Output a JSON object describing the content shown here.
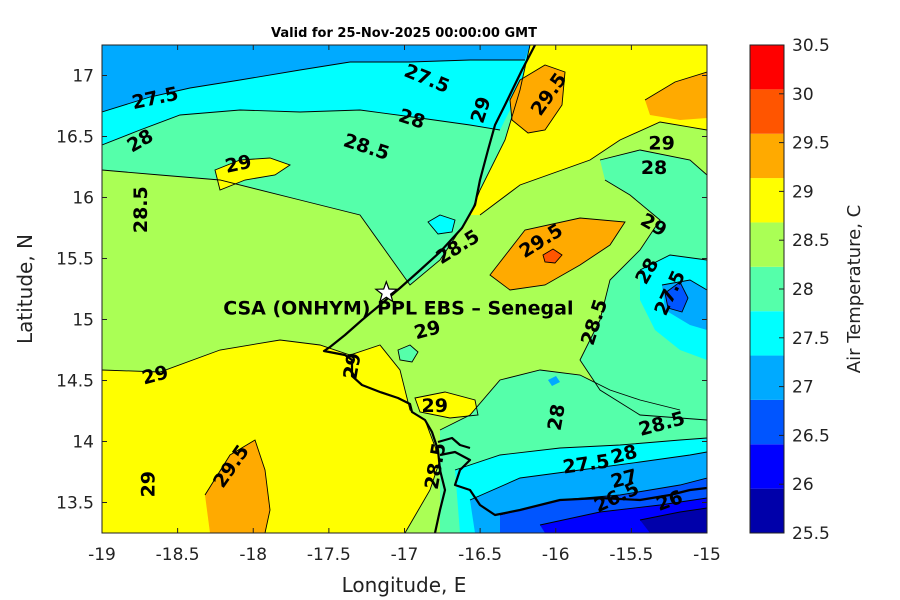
{
  "chart_data": {
    "type": "heatmap",
    "title": "Valid for 25-Nov-2025 00:00:00 GMT",
    "xlabel": "Longitude, E",
    "ylabel": "Latitude, N",
    "xlim": [
      -19,
      -15
    ],
    "ylim": [
      13.25,
      17.25
    ],
    "x_ticks": [
      -19,
      -18.5,
      -18,
      -17.5,
      -17,
      -16.5,
      -16,
      -15.5,
      -15
    ],
    "y_ticks": [
      13.5,
      14,
      14.5,
      15,
      15.5,
      16,
      16.5,
      17
    ],
    "colorbar": {
      "label": "Air Temperature, C",
      "min": 25.5,
      "max": 30.5,
      "ticks": [
        25.5,
        26,
        26.5,
        27,
        27.5,
        28,
        28.5,
        29,
        29.5,
        30,
        30.5
      ],
      "colors": [
        "#0000aa",
        "#0000ff",
        "#0055ff",
        "#00aaff",
        "#00ffff",
        "#55ffaa",
        "#aaff55",
        "#ffff00",
        "#ffaa00",
        "#ff5500",
        "#ff0000"
      ]
    },
    "contour_labels": [
      {
        "text": "27.5",
        "x": -18.65,
        "y": 16.82,
        "rot": -12
      },
      {
        "text": "27.5",
        "x": -16.85,
        "y": 16.98,
        "rot": 22
      },
      {
        "text": "28",
        "x": -18.75,
        "y": 16.47,
        "rot": -30
      },
      {
        "text": "28",
        "x": -16.95,
        "y": 16.65,
        "rot": 18
      },
      {
        "text": "28.5",
        "x": -17.25,
        "y": 16.42,
        "rot": 18
      },
      {
        "text": "29",
        "x": -18.1,
        "y": 16.28,
        "rot": -12
      },
      {
        "text": "28.5",
        "x": -18.75,
        "y": 15.9,
        "rot": -90
      },
      {
        "text": "29",
        "x": -16.5,
        "y": 16.72,
        "rot": -72
      },
      {
        "text": "29.5",
        "x": -16.05,
        "y": 16.85,
        "rot": -55
      },
      {
        "text": "29",
        "x": -15.3,
        "y": 16.45,
        "rot": 0
      },
      {
        "text": "28",
        "x": -15.35,
        "y": 16.25,
        "rot": 0
      },
      {
        "text": "29",
        "x": -15.35,
        "y": 15.78,
        "rot": 30
      },
      {
        "text": "28.5",
        "x": -16.65,
        "y": 15.6,
        "rot": -32
      },
      {
        "text": "29.5",
        "x": -16.1,
        "y": 15.65,
        "rot": -32
      },
      {
        "text": "28",
        "x": -15.4,
        "y": 15.4,
        "rot": -60
      },
      {
        "text": "27.5",
        "x": -15.25,
        "y": 15.22,
        "rot": -65
      },
      {
        "text": "28.5",
        "x": -15.75,
        "y": 14.98,
        "rot": -72
      },
      {
        "text": "29",
        "x": -16.85,
        "y": 14.92,
        "rot": -15
      },
      {
        "text": "29",
        "x": -17.35,
        "y": 14.62,
        "rot": -80
      },
      {
        "text": "29",
        "x": -18.65,
        "y": 14.55,
        "rot": -15
      },
      {
        "text": "29",
        "x": -16.8,
        "y": 14.3,
        "rot": 0
      },
      {
        "text": "28",
        "x": -16.0,
        "y": 14.2,
        "rot": -80
      },
      {
        "text": "28.5",
        "x": -15.3,
        "y": 14.15,
        "rot": -15
      },
      {
        "text": "28",
        "x": -15.55,
        "y": 13.9,
        "rot": -15
      },
      {
        "text": "27.5",
        "x": -15.8,
        "y": 13.82,
        "rot": -8
      },
      {
        "text": "27",
        "x": -15.55,
        "y": 13.7,
        "rot": -15
      },
      {
        "text": "26.5",
        "x": -15.6,
        "y": 13.55,
        "rot": -25
      },
      {
        "text": "26",
        "x": -15.25,
        "y": 13.52,
        "rot": -20
      },
      {
        "text": "28.5",
        "x": -16.8,
        "y": 13.8,
        "rot": -80
      },
      {
        "text": "29.5",
        "x": -18.15,
        "y": 13.8,
        "rot": -55
      },
      {
        "text": "29",
        "x": -18.7,
        "y": 13.65,
        "rot": -90
      }
    ],
    "site": {
      "label": "CSA (ONHYM) PPL EBS  – Senegal",
      "lon": -17.12,
      "lat": 15.22
    }
  }
}
